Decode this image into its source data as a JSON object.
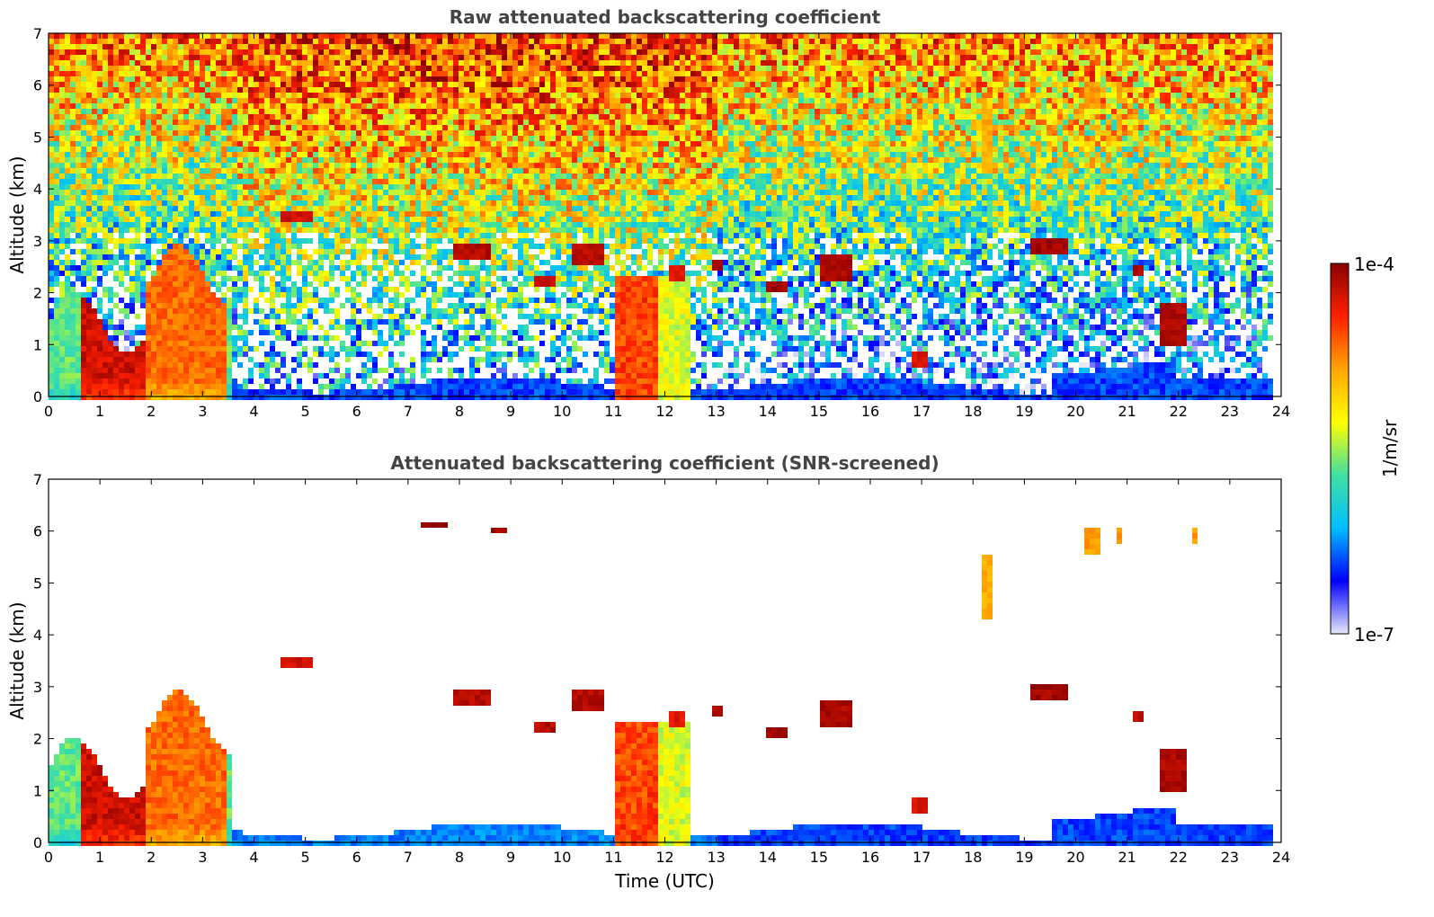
{
  "chart_data": [
    {
      "type": "heatmap",
      "title": "Raw attenuated backscattering coefficient",
      "xlabel": "",
      "ylabel": "Altitude (km)",
      "xlim": [
        0,
        24
      ],
      "ylim": [
        0,
        7
      ],
      "xticks": [
        "0",
        "1",
        "2",
        "3",
        "4",
        "5",
        "6",
        "7",
        "8",
        "9",
        "10",
        "11",
        "12",
        "13",
        "14",
        "15",
        "16",
        "17",
        "18",
        "19",
        "20",
        "21",
        "22",
        "23",
        "24"
      ],
      "yticks": [
        "0",
        "1",
        "2",
        "3",
        "4",
        "5",
        "6",
        "7"
      ],
      "screened": false
    },
    {
      "type": "heatmap",
      "title": "Attenuated backscattering coefficient (SNR-screened)",
      "xlabel": "Time (UTC)",
      "ylabel": "Altitude (km)",
      "xlim": [
        0,
        24
      ],
      "ylim": [
        0,
        7
      ],
      "xticks": [
        "0",
        "1",
        "2",
        "3",
        "4",
        "5",
        "6",
        "7",
        "8",
        "9",
        "10",
        "11",
        "12",
        "13",
        "14",
        "15",
        "16",
        "17",
        "18",
        "19",
        "20",
        "21",
        "22",
        "23",
        "24"
      ],
      "yticks": [
        "0",
        "1",
        "2",
        "3",
        "4",
        "5",
        "6",
        "7"
      ],
      "screened": true
    }
  ],
  "colorbar": {
    "min_label": "1e-7",
    "max_label": "1e-4",
    "label": "1/m/sr",
    "scale": "log",
    "colors": [
      "#e8e8f8",
      "#0000ff",
      "#00bfff",
      "#40e0a0",
      "#ffff00",
      "#ffa500",
      "#ff2000",
      "#8b0000"
    ]
  }
}
